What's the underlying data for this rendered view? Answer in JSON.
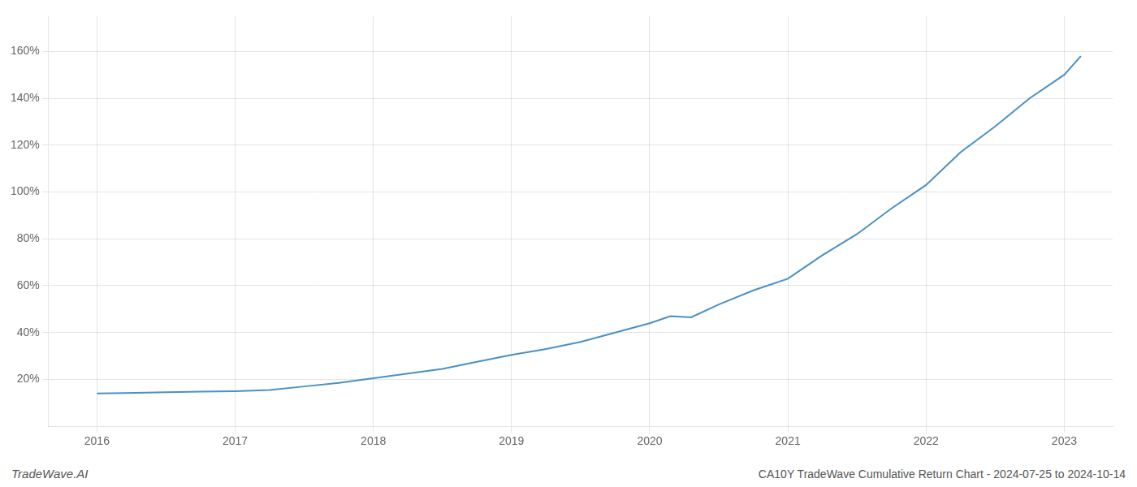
{
  "chart_data": {
    "type": "line",
    "title": "CA10Y TradeWave Cumulative Return Chart - 2024-07-25 to 2024-10-14",
    "annotations": [
      {
        "text": "TradeWave.AI"
      }
    ],
    "x": [
      2016.0,
      2016.2,
      2016.5,
      2016.75,
      2017.0,
      2017.25,
      2017.5,
      2017.75,
      2018.0,
      2018.25,
      2018.5,
      2018.75,
      2019.0,
      2019.25,
      2019.5,
      2019.75,
      2020.0,
      2020.15,
      2020.3,
      2020.5,
      2020.75,
      2021.0,
      2021.25,
      2021.5,
      2021.75,
      2022.0,
      2022.25,
      2022.5,
      2022.75,
      2023.0,
      2023.12
    ],
    "values": [
      14.0,
      14.2,
      14.5,
      14.8,
      15.0,
      15.5,
      17.0,
      18.5,
      20.5,
      22.5,
      24.5,
      27.5,
      30.5,
      33.0,
      36.0,
      40.0,
      44.0,
      47.0,
      46.5,
      52.0,
      58.0,
      63.0,
      73.0,
      82.0,
      93.0,
      103.0,
      117.0,
      128.0,
      140.0,
      150.0,
      158.0
    ],
    "color": "#4a90c4",
    "xlim": [
      2015.65,
      2023.35
    ],
    "ylim": [
      0,
      175
    ],
    "xticks": [
      2016,
      2017,
      2018,
      2019,
      2020,
      2021,
      2022,
      2023
    ],
    "yticks": [
      {
        "value": 20,
        "label": "20%"
      },
      {
        "value": 40,
        "label": "40%"
      },
      {
        "value": 60,
        "label": "60%"
      },
      {
        "value": 80,
        "label": "80%"
      },
      {
        "value": 100,
        "label": "100%"
      },
      {
        "value": 120,
        "label": "120%"
      },
      {
        "value": 140,
        "label": "140%"
      },
      {
        "value": 160,
        "label": "160%"
      }
    ],
    "grid": true
  }
}
